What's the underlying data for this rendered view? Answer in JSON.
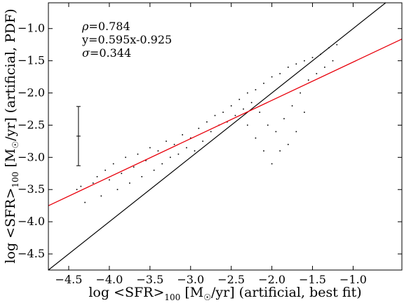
{
  "chart_data": {
    "type": "scatter",
    "title": "",
    "xlabel": "log <SFR>100 [M☉/yr] (artificial, best fit)",
    "ylabel": "log <SFR>100 [M☉/yr] (artificial, PDF)",
    "xlabel_parts": {
      "pre": "log  <SFR>",
      "sub1": "100",
      "mid": " [M",
      "sub2": "☉",
      "post": "/yr] (artificial, best fit)"
    },
    "ylabel_parts": {
      "pre": "log  <SFR>",
      "sub1": "100",
      "mid": " [M",
      "sub2": "☉",
      "post": "/yr] (artificial, PDF)"
    },
    "xlim": [
      -4.75,
      -0.4
    ],
    "ylim": [
      -4.75,
      -0.6
    ],
    "xticks": [
      -4.5,
      -4.0,
      -3.5,
      -3.0,
      -2.5,
      -2.0,
      -1.5,
      -1.0
    ],
    "yticks": [
      -4.5,
      -4.0,
      -3.5,
      -3.0,
      -2.5,
      -2.0,
      -1.5,
      -1.0
    ],
    "xtick_labels": [
      "−4.5",
      "−4.0",
      "−3.5",
      "−3.0",
      "−2.5",
      "−2.0",
      "−1.5",
      "−1.0"
    ],
    "ytick_labels": [
      "−4.5",
      "−4.0",
      "−3.5",
      "−3.0",
      "−2.5",
      "−2.0",
      "−1.5",
      "−1.0"
    ],
    "grid": false,
    "annotations": {
      "rho_symbol": "ρ",
      "rho_value": "=0.784",
      "fit": "y=0.595x-0.925",
      "sigma_symbol": "σ",
      "sigma_value": "=0.344"
    },
    "fit_line": {
      "slope": 0.595,
      "intercept": -0.925,
      "color": "#e8000b"
    },
    "identity_line": {
      "slope": 1.0,
      "intercept": 0.0,
      "color": "#000000"
    },
    "errorbar": {
      "x": -4.38,
      "y_center": -2.67,
      "half_range": 0.46
    },
    "point_color": "#000000",
    "scatter_points": [
      [
        -4.4,
        -3.5
      ],
      [
        -4.35,
        -3.45
      ],
      [
        -4.3,
        -3.7
      ],
      [
        -4.2,
        -3.4
      ],
      [
        -4.15,
        -3.3
      ],
      [
        -4.1,
        -3.6
      ],
      [
        -4.05,
        -3.2
      ],
      [
        -4.0,
        -3.35
      ],
      [
        -3.95,
        -3.1
      ],
      [
        -3.9,
        -3.5
      ],
      [
        -3.85,
        -3.25
      ],
      [
        -3.8,
        -3.0
      ],
      [
        -3.75,
        -3.4
      ],
      [
        -3.7,
        -3.15
      ],
      [
        -3.65,
        -2.95
      ],
      [
        -3.6,
        -3.3
      ],
      [
        -3.55,
        -3.05
      ],
      [
        -3.5,
        -2.85
      ],
      [
        -3.45,
        -3.2
      ],
      [
        -3.4,
        -2.9
      ],
      [
        -3.35,
        -3.1
      ],
      [
        -3.3,
        -2.75
      ],
      [
        -3.25,
        -3.0
      ],
      [
        -3.2,
        -2.8
      ],
      [
        -3.15,
        -2.95
      ],
      [
        -3.1,
        -2.65
      ],
      [
        -3.05,
        -2.85
      ],
      [
        -3.0,
        -2.7
      ],
      [
        -2.95,
        -2.9
      ],
      [
        -2.9,
        -2.55
      ],
      [
        -2.85,
        -2.75
      ],
      [
        -2.8,
        -2.45
      ],
      [
        -2.75,
        -2.6
      ],
      [
        -2.7,
        -2.35
      ],
      [
        -2.65,
        -2.5
      ],
      [
        -2.6,
        -2.3
      ],
      [
        -2.55,
        -2.45
      ],
      [
        -2.5,
        -2.2
      ],
      [
        -2.45,
        -2.35
      ],
      [
        -2.4,
        -2.1
      ],
      [
        -2.35,
        -2.25
      ],
      [
        -2.3,
        -2.0
      ],
      [
        -2.25,
        -2.15
      ],
      [
        -2.2,
        -1.95
      ],
      [
        -2.15,
        -2.3
      ],
      [
        -2.1,
        -1.85
      ],
      [
        -2.05,
        -2.5
      ],
      [
        -2.0,
        -1.75
      ],
      [
        -1.95,
        -2.6
      ],
      [
        -1.9,
        -1.7
      ],
      [
        -1.85,
        -2.4
      ],
      [
        -1.8,
        -1.6
      ],
      [
        -1.75,
        -2.2
      ],
      [
        -1.7,
        -1.55
      ],
      [
        -1.65,
        -2.0
      ],
      [
        -1.6,
        -1.5
      ],
      [
        -1.55,
        -1.8
      ],
      [
        -1.5,
        -1.45
      ],
      [
        -1.45,
        -1.7
      ],
      [
        -1.4,
        -1.4
      ],
      [
        -1.35,
        -1.6
      ],
      [
        -1.3,
        -1.3
      ],
      [
        -1.25,
        -1.5
      ],
      [
        -1.2,
        -1.25
      ],
      [
        -1.9,
        -2.9
      ],
      [
        -2.0,
        -3.1
      ],
      [
        -1.8,
        -2.8
      ],
      [
        -2.1,
        -2.9
      ],
      [
        -1.7,
        -2.6
      ],
      [
        -2.2,
        -2.7
      ],
      [
        -1.6,
        -2.3
      ],
      [
        -2.3,
        -2.5
      ]
    ]
  }
}
